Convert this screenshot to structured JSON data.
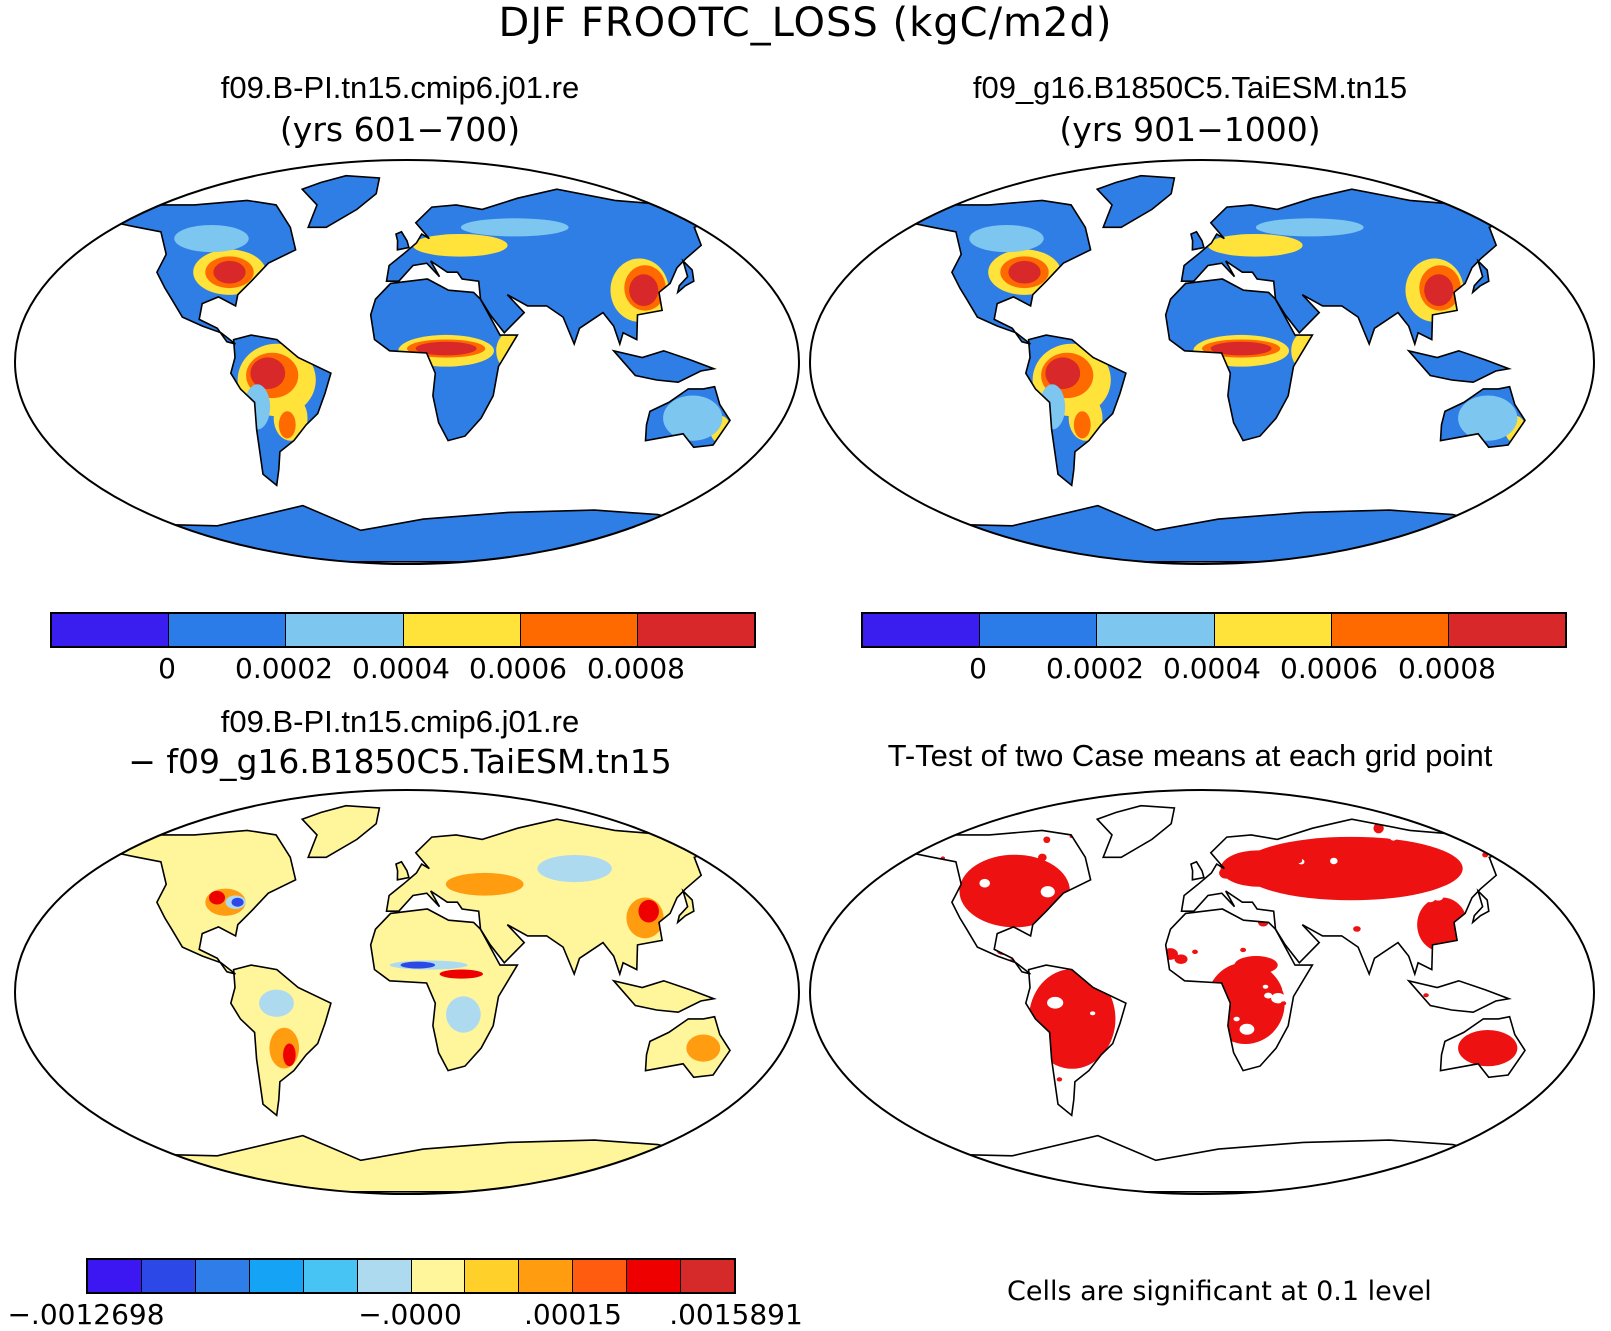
{
  "title": "DJF FROOTC_LOSS (kgC/m2d)",
  "panels": {
    "case1": {
      "name": "f09.B-PI.tn15.cmip6.j01.re",
      "years": "(yrs 601−700)",
      "ocean_color": "#ffffff",
      "land_color": "#2f7ee6"
    },
    "case2": {
      "name": "f09_g16.B1850C5.TaiESM.tn15",
      "years": "(yrs 901−1000)",
      "ocean_color": "#ffffff",
      "land_color": "#2f7ee6"
    },
    "diff": {
      "line1": "f09.B-PI.tn15.cmip6.j01.re",
      "line2": "− f09_g16.B1850C5.TaiESM.tn15",
      "land_color": "#fff59a"
    },
    "ttest": {
      "title": "T-Test of two Case means at each grid point",
      "note": "Cells are significant at 0.1 level",
      "significant_color": "#ee1111"
    }
  },
  "colorbar_top": {
    "colors": [
      "#3a1ef0",
      "#2b7be8",
      "#7cc6ef",
      "#ffe23a",
      "#ff6a00",
      "#d9282a"
    ],
    "tick_labels": [
      "0",
      "0.0002",
      "0.0004",
      "0.0006",
      "0.0008"
    ]
  },
  "colorbar_diff": {
    "colors": [
      "#3d17f2",
      "#2c48e6",
      "#2f7de8",
      "#14a3f5",
      "#47c3f4",
      "#aedaf0",
      "#fff59a",
      "#ffd02a",
      "#ff9c10",
      "#ff5c10",
      "#ee0000",
      "#d62a2a"
    ],
    "tick_labels": [
      "−.0012698",
      "−.0000",
      ".00015",
      ".0015891"
    ]
  }
}
